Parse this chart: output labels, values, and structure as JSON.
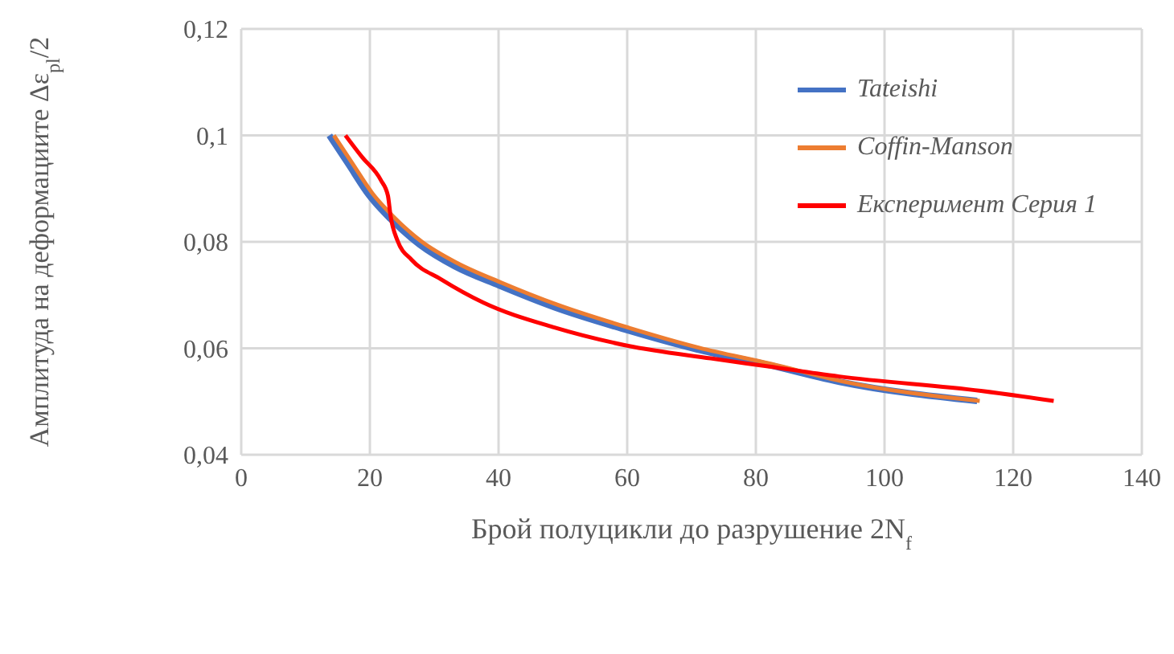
{
  "chart_data": {
    "type": "line",
    "xlabel": "Брой полуцикли до разрушение 2N$_{f}$",
    "ylabel": "Амплитуда на деформациите Δε$_{pl}$/2",
    "xlim": [
      0,
      140
    ],
    "xticks": [
      0,
      20,
      40,
      60,
      80,
      100,
      120,
      140
    ],
    "ylim": [
      0.04,
      0.12
    ],
    "yticks": [
      {
        "value": 0.04,
        "label": "0,04"
      },
      {
        "value": 0.06,
        "label": "0,06"
      },
      {
        "value": 0.08,
        "label": "0,08"
      },
      {
        "value": 0.1,
        "label": "0,1"
      },
      {
        "value": 0.12,
        "label": "0,12"
      }
    ],
    "grid": true,
    "legend": "top right",
    "marker": "none",
    "line_style": "solid",
    "series": [
      {
        "name": "Tateishi",
        "color": "#4472c4",
        "x": [
          13.7,
          16.6,
          19.9,
          23.2,
          27.7,
          33.2,
          40.1,
          48.7,
          60,
          70.8,
          81.9,
          93,
          114.4
        ],
        "values": [
          0.1,
          0.0947,
          0.0887,
          0.0843,
          0.0795,
          0.0754,
          0.0718,
          0.0677,
          0.0634,
          0.0598,
          0.0569,
          0.0537,
          0.0501
        ]
      },
      {
        "name": "Coffin-Manson",
        "color": "#ed7d31",
        "x": [
          14.4,
          17.2,
          20.4,
          23.6,
          28.1,
          33.6,
          40.5,
          49.1,
          60.4,
          71.2,
          82.3,
          93.4,
          114.8
        ],
        "values": [
          0.1,
          0.0949,
          0.0891,
          0.0848,
          0.08,
          0.076,
          0.0723,
          0.0682,
          0.0638,
          0.0601,
          0.0571,
          0.0538,
          0.0501
        ]
      },
      {
        "name": "Експеримент Серия 1",
        "color": "#ff0000",
        "x": [
          16.2,
          18.8,
          21.7,
          22.8,
          23.2,
          24.3,
          26.5,
          31,
          37.6,
          48.7,
          60,
          73,
          81.9,
          93,
          115,
          126.3
        ],
        "values": [
          0.1,
          0.0959,
          0.0916,
          0.0887,
          0.085,
          0.0802,
          0.0766,
          0.073,
          0.0686,
          0.0639,
          0.0605,
          0.0581,
          0.0566,
          0.0547,
          0.052,
          0.0501
        ]
      }
    ]
  }
}
